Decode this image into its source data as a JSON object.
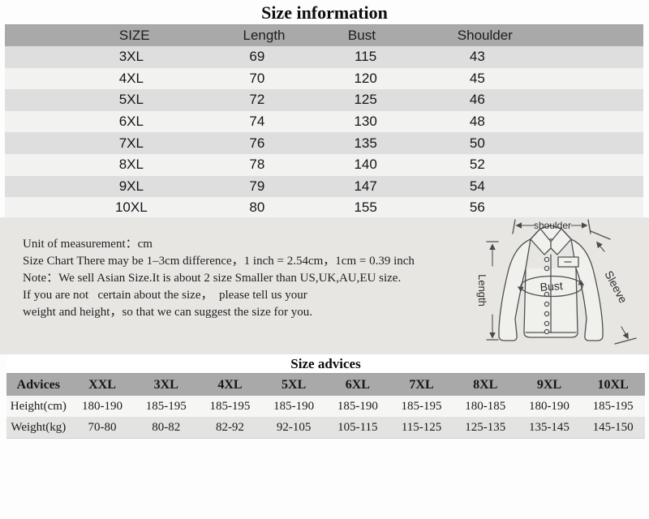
{
  "title": "Size information",
  "size_table": {
    "columns": [
      "SIZE",
      "Length",
      "Bust",
      "Shoulder"
    ],
    "rows": [
      [
        "3XL",
        "69",
        "115",
        "43"
      ],
      [
        "4XL",
        "70",
        "120",
        "45"
      ],
      [
        "5XL",
        "72",
        "125",
        "46"
      ],
      [
        "6XL",
        "74",
        "130",
        "48"
      ],
      [
        "7XL",
        "76",
        "135",
        "50"
      ],
      [
        "8XL",
        "78",
        "140",
        "52"
      ],
      [
        "9XL",
        "79",
        "147",
        "54"
      ],
      [
        "10XL",
        "80",
        "155",
        "56"
      ]
    ]
  },
  "notes": {
    "lines": [
      "Unit of measurement：cm",
      "Size Chart There may be 1–3cm difference，1 inch = 2.54cm，1cm = 0.39 inch",
      "Note：We sell Asian Size.It is about 2 size Smaller than US,UK,AU,EU size.",
      "If you are not   certain about the size，  please tell us your",
      "weight and height，so that we can suggest the size for you."
    ]
  },
  "diagram": {
    "labels": {
      "shoulder": "shoulder",
      "length": "Length",
      "bust": "Bust",
      "sleeve": "Sleeve"
    }
  },
  "advice_table": {
    "title": "Size advices",
    "columns": [
      "Advices",
      "XXL",
      "3XL",
      "4XL",
      "5XL",
      "6XL",
      "7XL",
      "8XL",
      "9XL",
      "10XL"
    ],
    "rows": [
      {
        "label": "Height(cm)",
        "values": [
          "180-190",
          "185-195",
          "185-195",
          "185-190",
          "185-190",
          "185-195",
          "180-185",
          "180-190",
          "185-195"
        ]
      },
      {
        "label": "Weight(kg)",
        "values": [
          "70-80",
          "80-82",
          "82-92",
          "92-105",
          "105-115",
          "115-125",
          "125-135",
          "135-145",
          "145-150"
        ]
      }
    ]
  },
  "colors": {
    "header_gray": "#a9a9a9",
    "stripe_gray": "#dedede",
    "stripe_light": "#f2f2f1",
    "panel_gray": "#e7e6e3",
    "text": "#1a1a1a"
  }
}
